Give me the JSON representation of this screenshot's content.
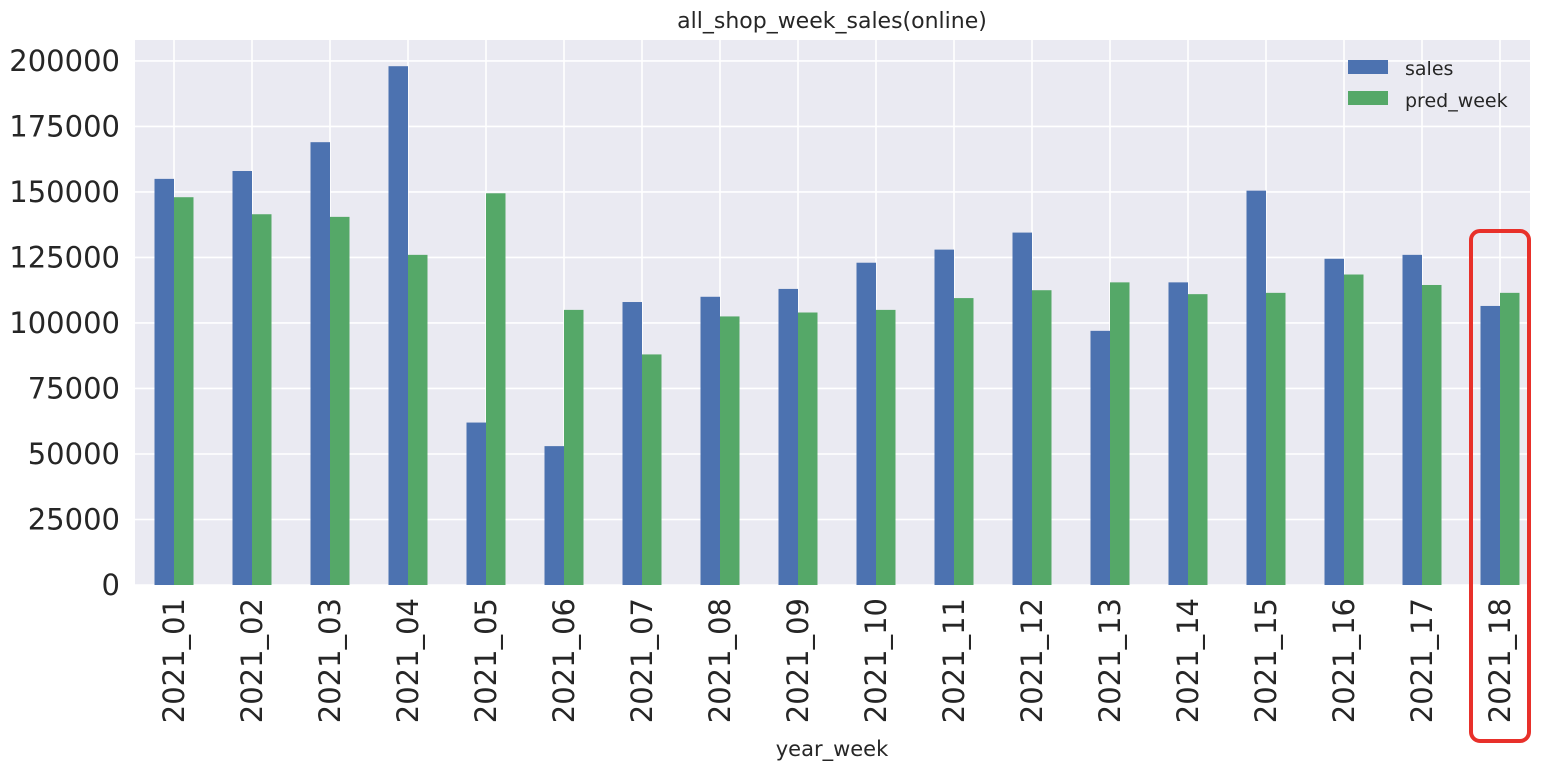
{
  "chart_data": {
    "type": "bar",
    "title": "all_shop_week_sales(online)",
    "xlabel": "year_week",
    "ylabel": "",
    "ylim": [
      0,
      208000
    ],
    "yticks": [
      0,
      25000,
      50000,
      75000,
      100000,
      125000,
      150000,
      175000,
      200000
    ],
    "grid": true,
    "legend_position": "top-right",
    "categories": [
      "2021_01",
      "2021_02",
      "2021_03",
      "2021_04",
      "2021_05",
      "2021_06",
      "2021_07",
      "2021_08",
      "2021_09",
      "2021_10",
      "2021_11",
      "2021_12",
      "2021_13",
      "2021_14",
      "2021_15",
      "2021_16",
      "2021_17",
      "2021_18"
    ],
    "series": [
      {
        "name": "sales",
        "color": "#4c72b0",
        "values": [
          155000,
          158000,
          169000,
          198000,
          62000,
          53000,
          108000,
          110000,
          113000,
          123000,
          128000,
          134500,
          97000,
          115500,
          150500,
          124500,
          126000,
          106500
        ]
      },
      {
        "name": "pred_week",
        "color": "#55a868",
        "values": [
          148000,
          141500,
          140500,
          126000,
          149500,
          105000,
          88000,
          102500,
          104000,
          105000,
          109500,
          112500,
          115500,
          111000,
          111500,
          118500,
          114500,
          111500
        ]
      }
    ],
    "highlight": {
      "category": "2021_18",
      "color": "#e8302a"
    },
    "colors": {
      "plot_background": "#eaeaf2",
      "grid": "#ffffff"
    }
  }
}
